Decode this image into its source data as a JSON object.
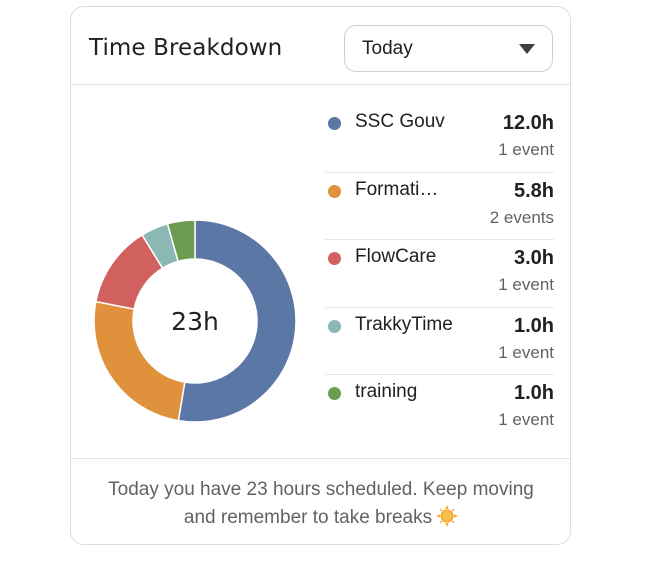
{
  "card": {
    "title": "Time Breakdown",
    "range_select": {
      "value": "Today"
    },
    "total_label": "23h",
    "footer_text": "Today you have 23 hours scheduled. Keep moving and remember to take breaks",
    "footer_icon": "sun-emoji-icon"
  },
  "legend": [
    {
      "name": "SSC Gouv",
      "hours": "12.0h",
      "events": "1 event",
      "color": "#5b77a6"
    },
    {
      "name": "Formati…",
      "hours": "5.8h",
      "events": "2 events",
      "color": "#e0913c"
    },
    {
      "name": "FlowCare",
      "hours": "3.0h",
      "events": "1 event",
      "color": "#d0615e"
    },
    {
      "name": "TrakkyTime",
      "hours": "1.0h",
      "events": "1 event",
      "color": "#8bb7b5"
    },
    {
      "name": "training",
      "hours": "1.0h",
      "events": "1 event",
      "color": "#6a9d52"
    }
  ],
  "chart_data": {
    "type": "pie",
    "categories": [
      "SSC Gouv",
      "Formati…",
      "FlowCare",
      "TrakkyTime",
      "training"
    ],
    "values": [
      12.0,
      5.8,
      3.0,
      1.0,
      1.0
    ],
    "colors": [
      "#5b77a6",
      "#e0913c",
      "#d0615e",
      "#8bb7b5",
      "#6a9d52"
    ],
    "center_label": "23h"
  }
}
